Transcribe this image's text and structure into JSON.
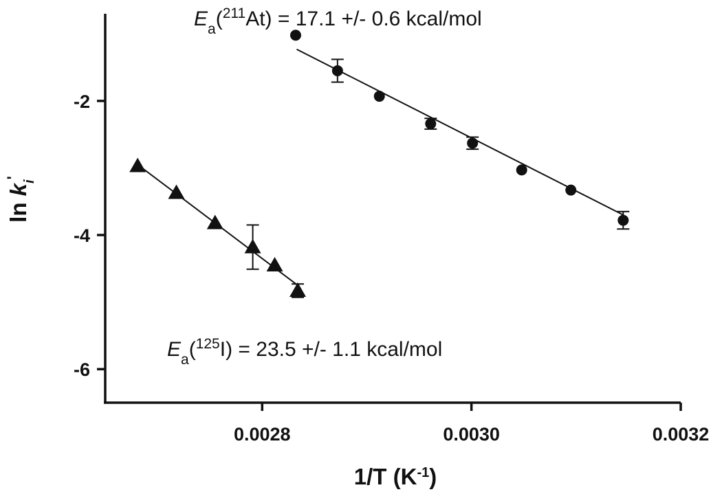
{
  "chart_data": {
    "type": "scatter",
    "title": "",
    "xlabel": {
      "main": "1/T (K",
      "sup": "-1",
      "end": ")"
    },
    "ylabel": {
      "main": "ln ",
      "var": "k",
      "sub": "i",
      "sup": "'"
    },
    "xlim": [
      0.00265,
      0.0032
    ],
    "ylim": [
      -6.5,
      -0.7
    ],
    "x_ticks": [
      0.0028,
      0.003,
      0.0032
    ],
    "x_tick_labels": [
      "0.0028",
      "0.0030",
      "0.0032"
    ],
    "y_ticks": [
      -2,
      -4,
      -6
    ],
    "y_tick_labels": [
      "-2",
      "-4",
      "-6"
    ],
    "grid": false,
    "series": [
      {
        "key": "at211",
        "marker": "circle",
        "points": [
          {
            "x": 0.002832,
            "y": -1.02,
            "err": 0
          },
          {
            "x": 0.002872,
            "y": -1.55,
            "err": 0.17
          },
          {
            "x": 0.002912,
            "y": -1.93,
            "err": 0
          },
          {
            "x": 0.002961,
            "y": -2.34,
            "err": 0.08
          },
          {
            "x": 0.003001,
            "y": -2.63,
            "err": 0.09
          },
          {
            "x": 0.003048,
            "y": -3.03,
            "err": 0
          },
          {
            "x": 0.003095,
            "y": -3.33,
            "err": 0
          },
          {
            "x": 0.003145,
            "y": -3.78,
            "err": 0.13
          }
        ],
        "fit": {
          "x": [
            0.002833,
            0.003145
          ],
          "y": [
            -1.23,
            -3.7
          ]
        }
      },
      {
        "key": "i125",
        "marker": "triangle",
        "points": [
          {
            "x": 0.002681,
            "y": -2.97,
            "err": 0
          },
          {
            "x": 0.002718,
            "y": -3.37,
            "err": 0
          },
          {
            "x": 0.002755,
            "y": -3.82,
            "err": 0
          },
          {
            "x": 0.002791,
            "y": -4.18,
            "err": 0.33
          },
          {
            "x": 0.002812,
            "y": -4.45,
            "err": 0
          },
          {
            "x": 0.002834,
            "y": -4.83,
            "err": 0.1
          }
        ],
        "fit": {
          "x": [
            0.002681,
            0.002834
          ],
          "y": [
            -2.95,
            -4.75
          ]
        }
      }
    ],
    "annotations": [
      {
        "key": "at",
        "prefix": "E",
        "sub": "a",
        "open": "(",
        "sup": "211",
        "nuclide": "At",
        "rest": ") = 17.1 +/- 0.6 kcal/mol"
      },
      {
        "key": "i",
        "prefix": "E",
        "sub": "a",
        "open": "(",
        "sup": "125",
        "nuclide": "I",
        "rest": ") = 23.5 +/- 1.1 kcal/mol"
      }
    ]
  }
}
